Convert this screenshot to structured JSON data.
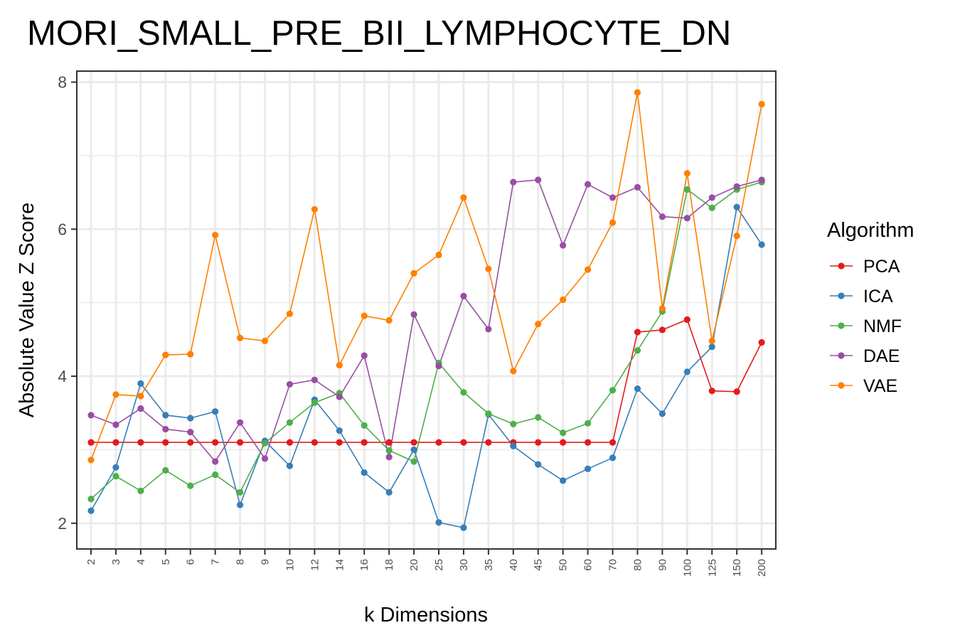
{
  "chart_data": {
    "type": "line",
    "title": "MORI_SMALL_PRE_BII_LYMPHOCYTE_DN",
    "xlabel": "k Dimensions",
    "ylabel": "Absolute Value Z Score",
    "categories": [
      "2",
      "3",
      "4",
      "5",
      "6",
      "7",
      "8",
      "9",
      "10",
      "12",
      "14",
      "16",
      "18",
      "20",
      "25",
      "30",
      "35",
      "40",
      "45",
      "50",
      "60",
      "70",
      "80",
      "90",
      "100",
      "125",
      "150",
      "200"
    ],
    "ylim": [
      1.65,
      8.15
    ],
    "yticks": [
      2,
      4,
      6,
      8
    ],
    "grid": true,
    "legend": {
      "title": "Algorithm",
      "position": "right"
    },
    "series": [
      {
        "name": "PCA",
        "color": "#E41A1C",
        "values": [
          3.1,
          3.1,
          3.1,
          3.1,
          3.1,
          3.1,
          3.1,
          3.1,
          3.1,
          3.1,
          3.1,
          3.1,
          3.1,
          3.1,
          3.1,
          3.1,
          3.1,
          3.1,
          3.1,
          3.1,
          3.1,
          3.1,
          4.6,
          4.63,
          4.77,
          3.8,
          3.79,
          4.46
        ]
      },
      {
        "name": "ICA",
        "color": "#377EB8",
        "values": [
          2.17,
          2.76,
          3.9,
          3.47,
          3.43,
          3.52,
          2.25,
          3.12,
          2.78,
          3.68,
          3.26,
          2.69,
          2.42,
          3.0,
          2.01,
          1.94,
          3.48,
          3.05,
          2.8,
          2.58,
          2.74,
          2.89,
          3.83,
          3.49,
          4.06,
          4.4,
          6.3,
          5.79
        ]
      },
      {
        "name": "NMF",
        "color": "#4DAF4A",
        "values": [
          2.33,
          2.64,
          2.44,
          2.72,
          2.51,
          2.66,
          2.42,
          3.09,
          3.37,
          3.64,
          3.77,
          3.33,
          2.99,
          2.84,
          4.18,
          3.78,
          3.49,
          3.35,
          3.44,
          3.23,
          3.36,
          3.81,
          4.35,
          4.88,
          6.54,
          6.29,
          6.54,
          6.64
        ]
      },
      {
        "name": "DAE",
        "color": "#984EA3",
        "values": [
          3.47,
          3.34,
          3.56,
          3.28,
          3.24,
          2.84,
          3.37,
          2.88,
          3.89,
          3.95,
          3.72,
          4.28,
          2.9,
          4.84,
          4.14,
          5.09,
          4.64,
          6.64,
          6.67,
          5.78,
          6.61,
          6.43,
          6.57,
          6.17,
          6.15,
          6.43,
          6.58,
          6.67
        ]
      },
      {
        "name": "VAE",
        "color": "#FF7F00",
        "values": [
          2.86,
          3.75,
          3.73,
          4.29,
          4.3,
          5.92,
          4.52,
          4.48,
          4.85,
          6.27,
          4.15,
          4.82,
          4.76,
          5.4,
          5.65,
          6.43,
          5.46,
          4.07,
          4.71,
          5.04,
          5.45,
          6.09,
          7.86,
          4.92,
          6.76,
          4.48,
          5.91,
          7.7
        ]
      }
    ]
  }
}
